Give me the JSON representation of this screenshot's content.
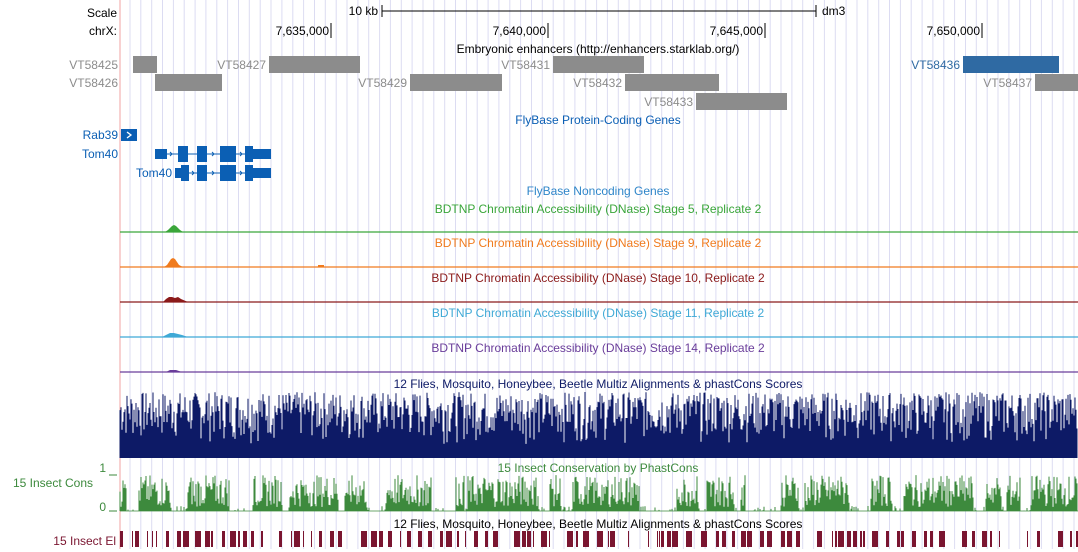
{
  "header": {
    "scale_label": "Scale",
    "scale_bar_value": "10 kb",
    "assembly": "dm3",
    "chrom_label": "chrX:",
    "positions": [
      "7,635,000",
      "7,640,000",
      "7,645,000",
      "7,650,000"
    ]
  },
  "tracks": {
    "enhancers": {
      "title": "Embryonic enhancers (http://enhancers.starklab.org/)",
      "items": [
        "VT58425",
        "VT58426",
        "VT58427",
        "VT58429",
        "VT58431",
        "VT58432",
        "VT58433",
        "VT58436",
        "VT58437"
      ],
      "color": "#8c8c8c",
      "highlight_color": "#2f6aa3"
    },
    "protein_genes": {
      "title": "FlyBase Protein-Coding Genes",
      "genes": [
        "Rab39",
        "Tom40",
        "Tom40"
      ],
      "color": "#0b5fb4"
    },
    "noncoding": {
      "title": "FlyBase Noncoding Genes",
      "color": "#2f86c9"
    },
    "dnase": [
      {
        "title": "BDTNP Chromatin Accessibility (DNase) Stage 5, Replicate 2",
        "color": "#3aa63a"
      },
      {
        "title": "BDTNP Chromatin Accessibility (DNase) Stage 9, Replicate 2",
        "color": "#f07b1e"
      },
      {
        "title": "BDTNP Chromatin Accessibility (DNase) Stage 10, Replicate 2",
        "color": "#8b1a1a"
      },
      {
        "title": "BDTNP Chromatin Accessibility (DNase) Stage 11, Replicate 2",
        "color": "#3fa9d6"
      },
      {
        "title": "BDTNP Chromatin Accessibility (DNase) Stage 14, Replicate 2",
        "color": "#6a3d9a"
      }
    ],
    "multiz": {
      "title": "12 Flies, Mosquito, Honeybee, Beetle Multiz Alignments & phastCons Scores",
      "color": "#0d1a66"
    },
    "phastcons": {
      "title": "15 Insect Conservation by PhastCons",
      "label": "15 Insect Cons",
      "axis_max": "1",
      "axis_min": "0",
      "color": "#3d8a3d"
    },
    "elements": {
      "title": "12 Flies, Mosquito, Honeybee, Beetle Multiz Alignments & phastCons Scores",
      "label": "15 Insect El",
      "color": "#7a1530"
    }
  }
}
